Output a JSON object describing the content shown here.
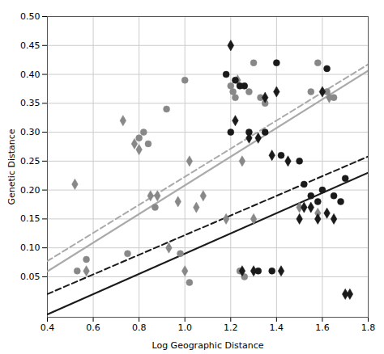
{
  "chart_data": {
    "type": "scatter",
    "xlabel": "Log Geographic Distance",
    "ylabel": "Genetic Distance",
    "xlim": [
      0.4,
      1.8
    ],
    "ylim": [
      -0.02,
      0.5
    ],
    "xticks": [
      0.4,
      0.6,
      0.8,
      {
        "value": 1.0,
        "label": "1.0"
      },
      1.2,
      1.4,
      1.6,
      1.8
    ],
    "yticks": [
      0.05,
      {
        "value": 0.1,
        "label": "0.10"
      },
      0.15,
      {
        "value": 0.2,
        "label": "0.20"
      },
      0.25,
      {
        "value": 0.3,
        "label": "0.30"
      },
      0.35,
      {
        "value": 0.4,
        "label": "0.40"
      },
      0.45,
      {
        "value": 0.5,
        "label": "0.50"
      }
    ],
    "grid": true,
    "series": [
      {
        "type": "line",
        "color": "#aaaaaa",
        "line_style": "solid",
        "x": [
          0.4,
          1.8
        ],
        "values": [
          0.0592,
          0.4064
        ]
      },
      {
        "type": "line",
        "color": "#aaaaaa",
        "line_style": "dashed",
        "x": [
          0.4,
          1.8
        ],
        "values": [
          0.0772,
          0.4174
        ]
      },
      {
        "type": "line",
        "color": "#1a1a1a",
        "line_style": "solid",
        "x": [
          0.4,
          1.8
        ],
        "values": [
          -0.015,
          0.23
        ]
      },
      {
        "type": "line",
        "color": "#1a1a1a",
        "line_style": "dashed",
        "x": [
          0.4,
          1.8
        ],
        "values": [
          0.02,
          0.258
        ]
      },
      {
        "type": "scatter",
        "color": "#888888",
        "marker": "circle",
        "x": [
          0.53,
          0.57,
          0.75,
          0.8,
          0.82,
          0.84,
          0.87,
          0.92,
          0.98,
          1.0,
          1.02,
          1.2,
          1.21,
          1.22,
          1.24,
          1.26,
          1.28,
          1.3,
          1.33,
          1.35,
          1.55,
          1.58,
          1.62,
          1.65
        ],
        "values": [
          0.06,
          0.08,
          0.09,
          0.29,
          0.3,
          0.28,
          0.17,
          0.34,
          0.09,
          0.39,
          0.04,
          0.38,
          0.37,
          0.36,
          0.06,
          0.05,
          0.37,
          0.42,
          0.36,
          0.35,
          0.37,
          0.42,
          0.37,
          0.36
        ]
      },
      {
        "type": "scatter",
        "color": "#888888",
        "marker": "diamond",
        "x": [
          0.52,
          0.57,
          0.73,
          0.78,
          0.8,
          0.85,
          0.88,
          0.93,
          0.97,
          1.0,
          1.02,
          1.05,
          1.08,
          1.18,
          1.2,
          1.23,
          1.25,
          1.3,
          1.5,
          1.58,
          1.63
        ],
        "values": [
          0.21,
          0.06,
          0.32,
          0.28,
          0.27,
          0.19,
          0.19,
          0.1,
          0.18,
          0.06,
          0.25,
          0.17,
          0.19,
          0.15,
          0.45,
          0.39,
          0.25,
          0.15,
          0.17,
          0.16,
          0.36
        ]
      },
      {
        "type": "scatter",
        "color": "#1a1a1a",
        "marker": "circle",
        "x": [
          1.18,
          1.2,
          1.22,
          1.24,
          1.26,
          1.28,
          1.32,
          1.35,
          1.38,
          1.4,
          1.42,
          1.5,
          1.52,
          1.55,
          1.58,
          1.6,
          1.62,
          1.65,
          1.68,
          1.7
        ],
        "values": [
          0.4,
          0.3,
          0.39,
          0.38,
          0.38,
          0.3,
          0.06,
          0.3,
          0.06,
          0.42,
          0.26,
          0.25,
          0.21,
          0.19,
          0.18,
          0.2,
          0.41,
          0.19,
          0.18,
          0.22
        ]
      },
      {
        "type": "scatter",
        "color": "#1a1a1a",
        "marker": "diamond",
        "x": [
          1.2,
          1.22,
          1.25,
          1.28,
          1.3,
          1.32,
          1.35,
          1.38,
          1.4,
          1.42,
          1.45,
          1.5,
          1.52,
          1.55,
          1.58,
          1.6,
          1.62,
          1.65,
          1.7,
          1.72
        ],
        "values": [
          0.45,
          0.32,
          0.06,
          0.29,
          0.06,
          0.29,
          0.36,
          0.26,
          0.37,
          0.06,
          0.25,
          0.15,
          0.17,
          0.17,
          0.15,
          0.37,
          0.16,
          0.15,
          0.02,
          0.02
        ]
      }
    ]
  }
}
